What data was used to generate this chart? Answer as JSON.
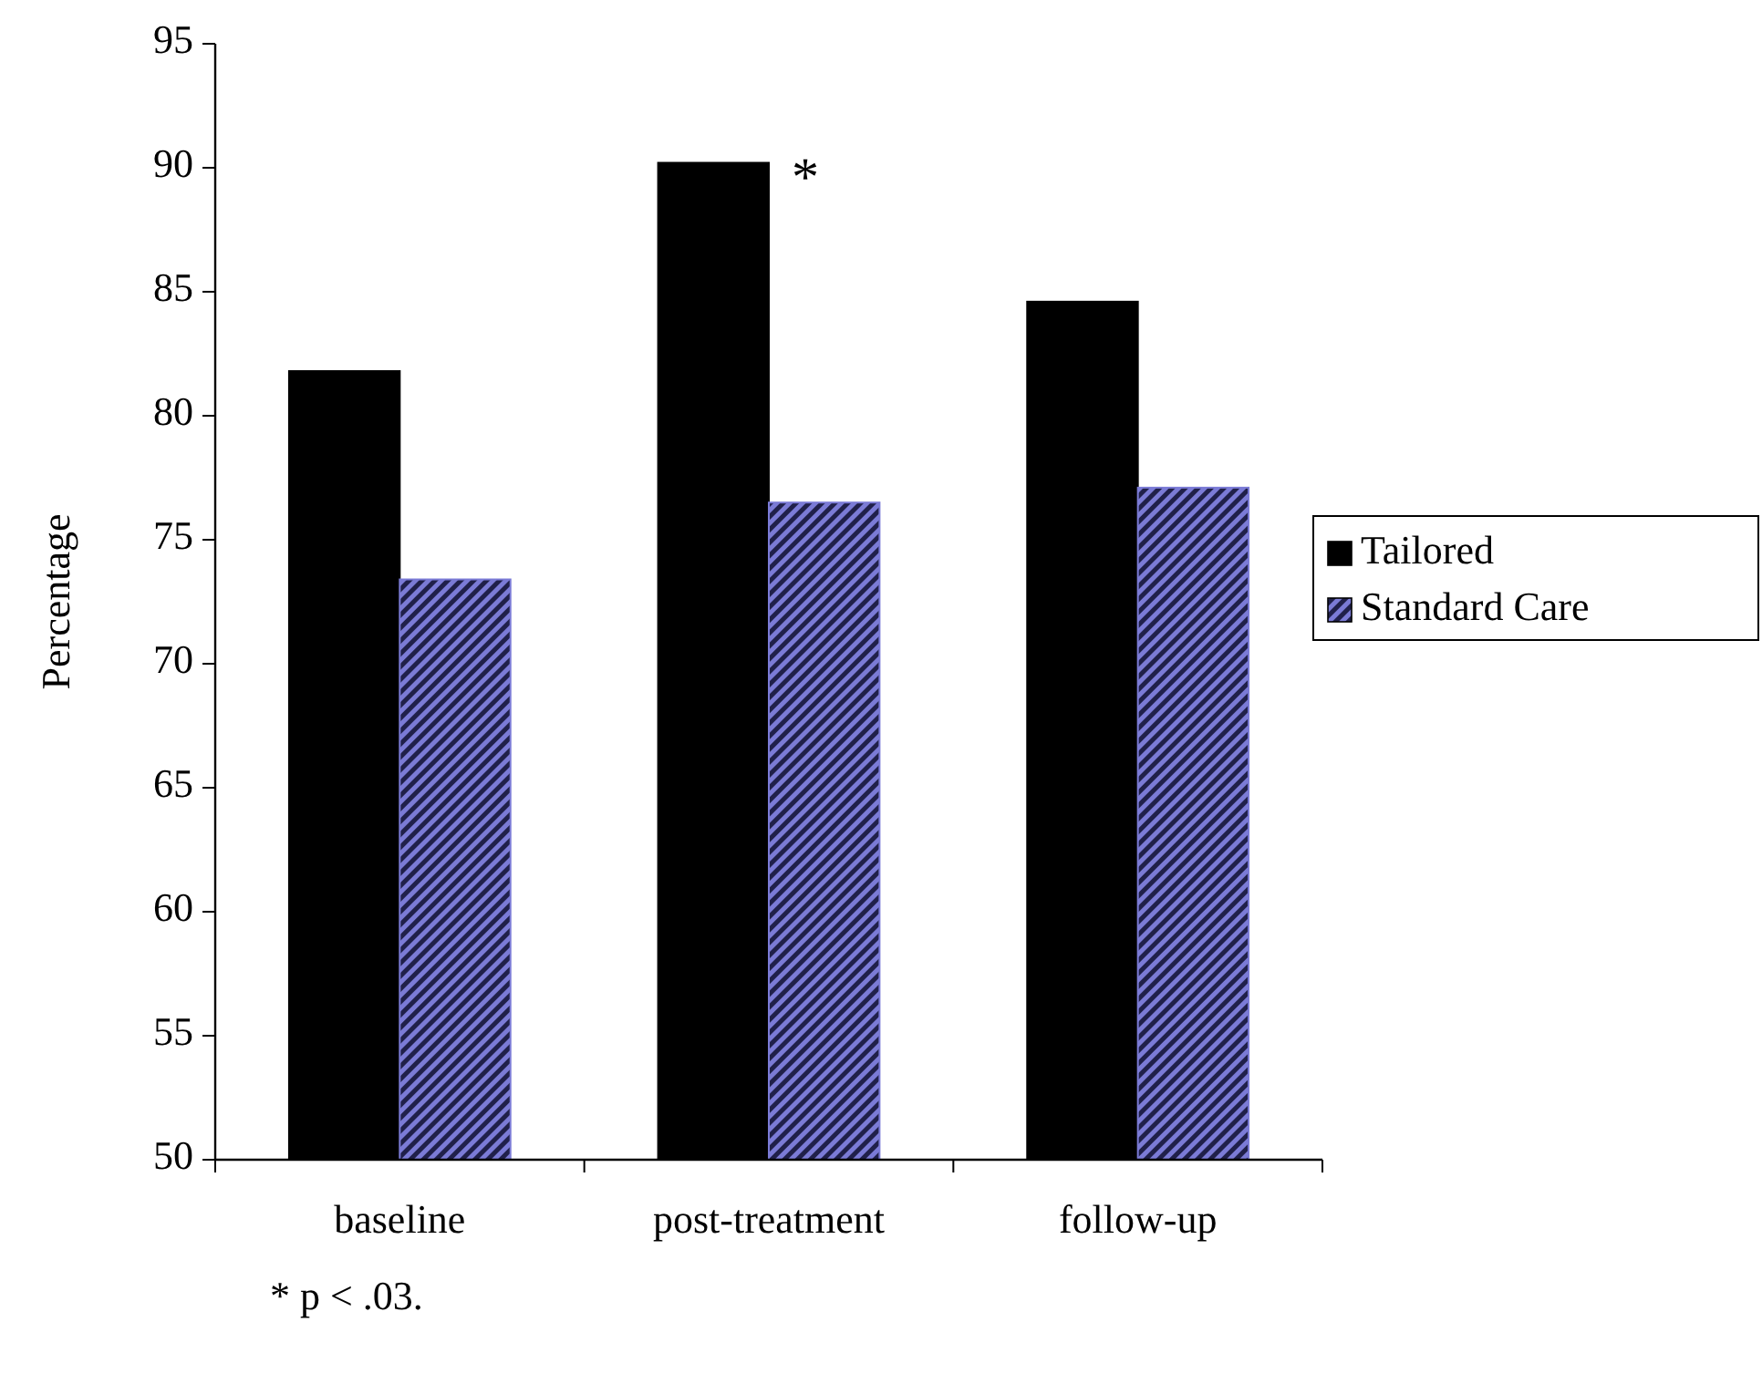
{
  "chart_data": {
    "type": "bar",
    "ylabel": "Percentage",
    "categories": [
      "baseline",
      "post-treatment",
      "follow-up"
    ],
    "series": [
      {
        "name": "Tailored",
        "color": "#000000",
        "values": [
          81.8,
          90.2,
          84.6
        ]
      },
      {
        "name": "Standard Care",
        "color": "#7b7bd6",
        "values": [
          73.4,
          76.5,
          77.1
        ]
      }
    ],
    "ylim": [
      50,
      95
    ],
    "yticks": [
      50,
      55,
      60,
      65,
      70,
      75,
      80,
      85,
      90,
      95
    ],
    "grid": false,
    "legend": "right",
    "annotations": [
      {
        "text": "*",
        "x": "post-treatment",
        "y": 89.4
      },
      "* p < .03."
    ]
  }
}
